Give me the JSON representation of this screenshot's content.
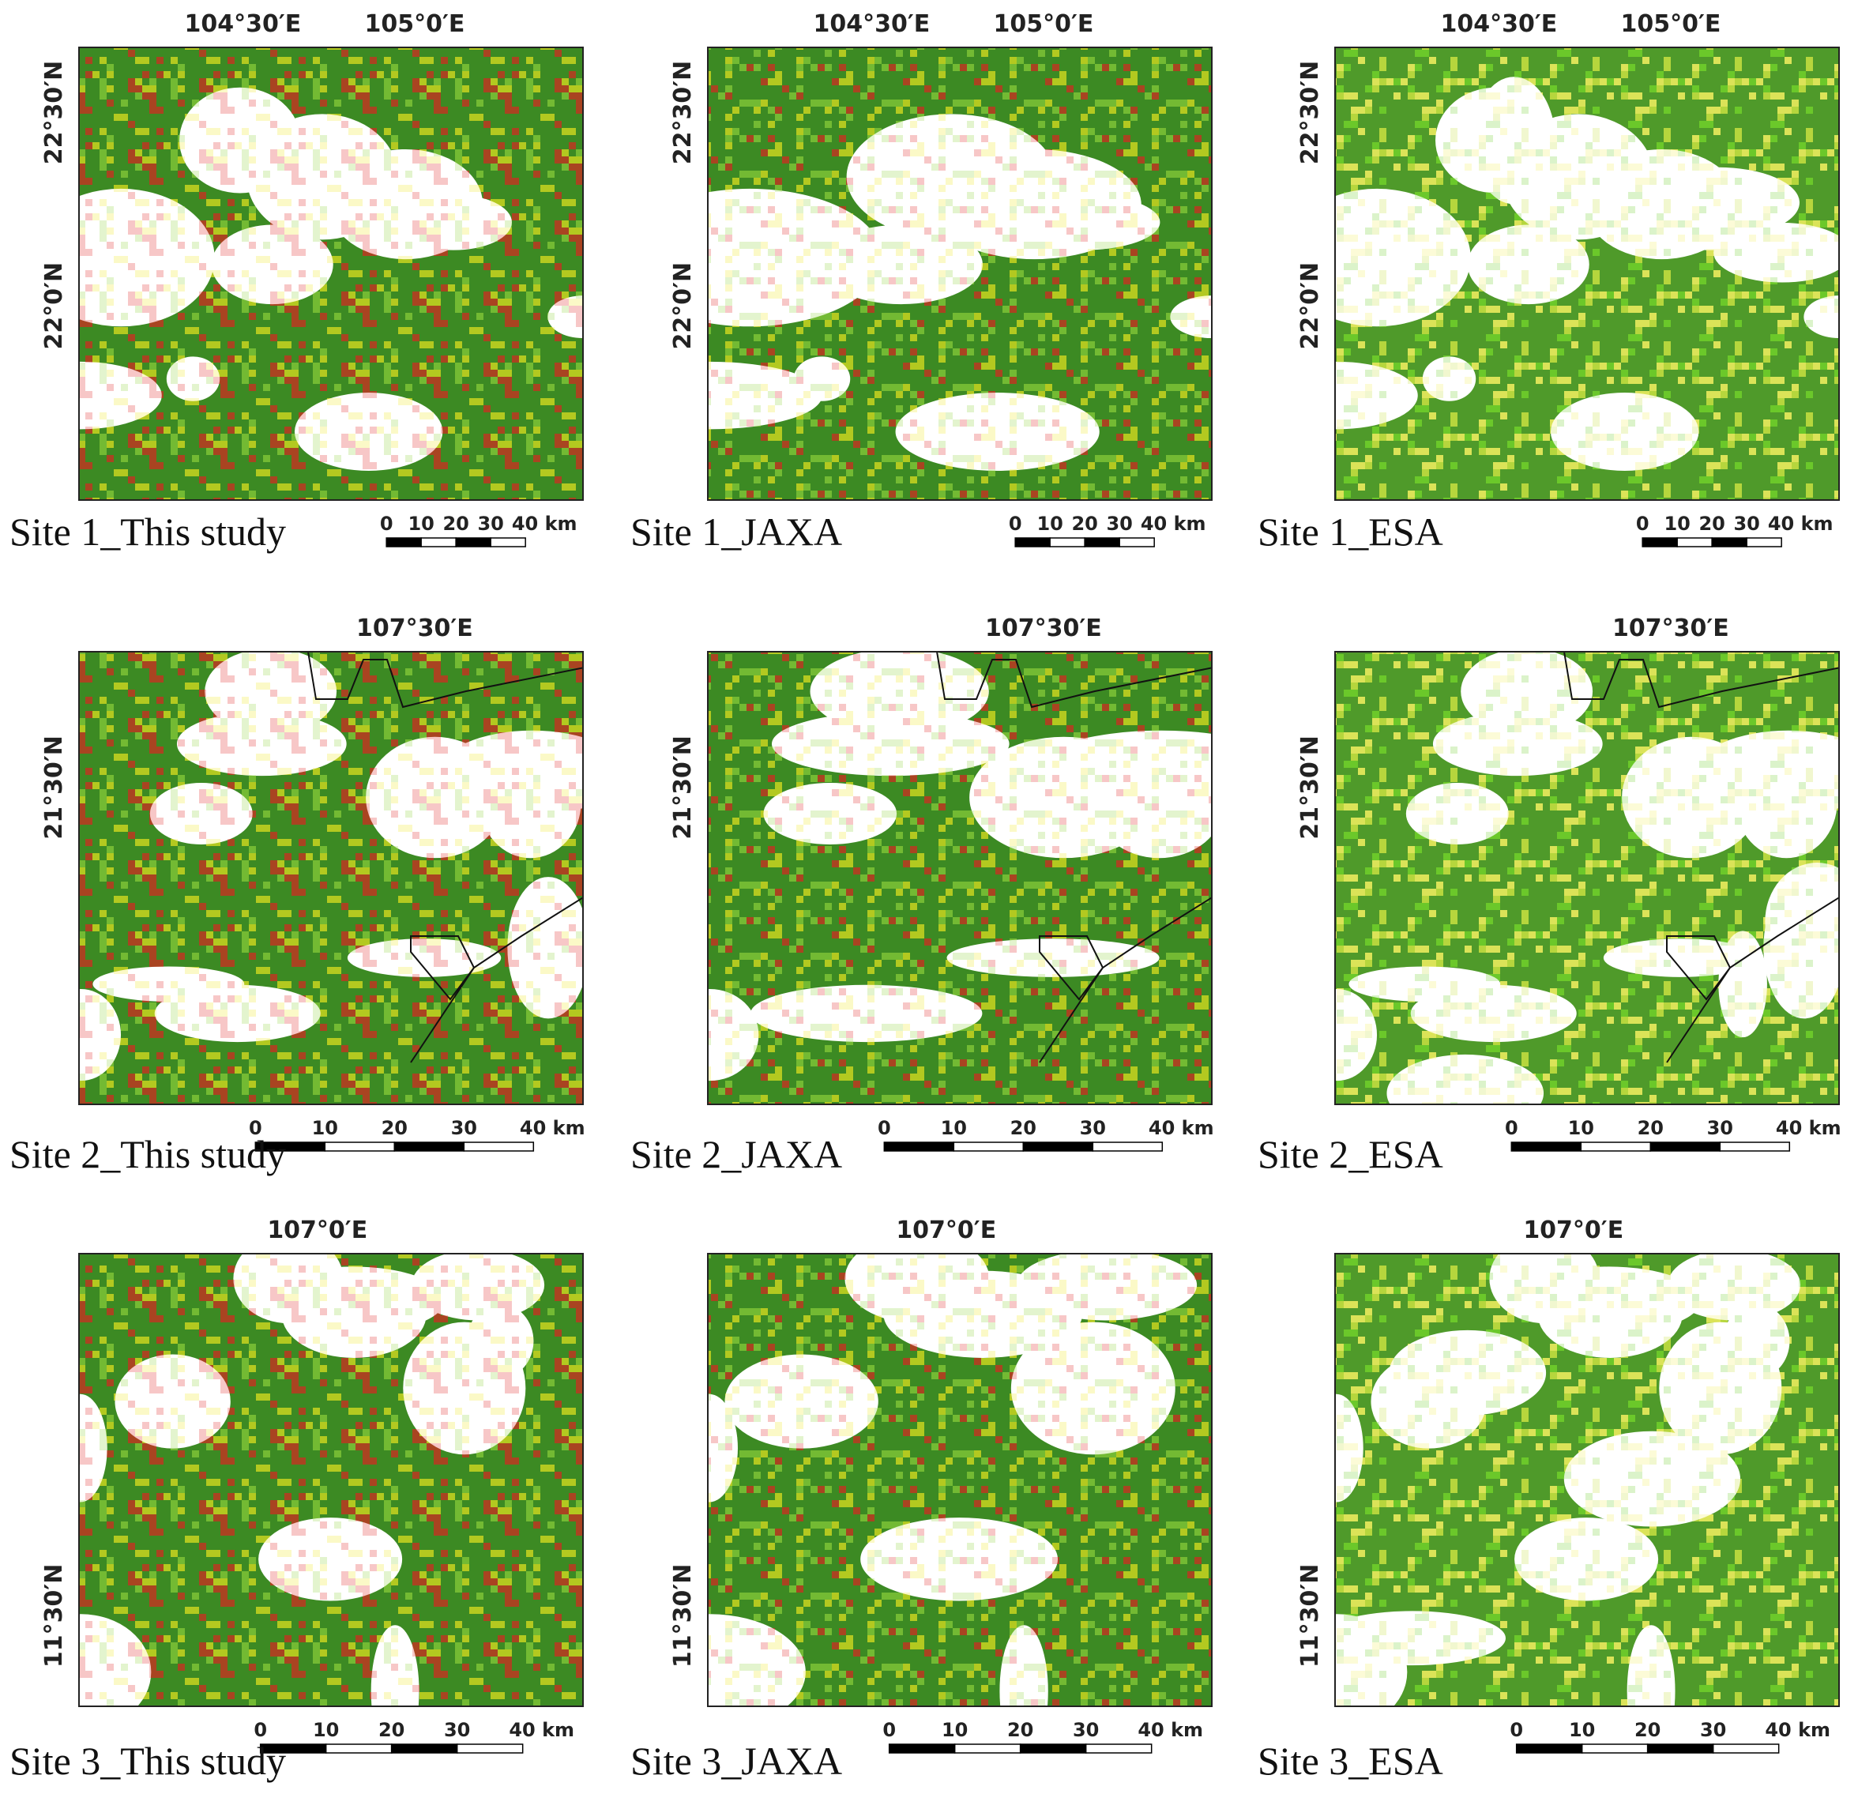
{
  "panels": [
    {
      "caption": "Site 1_This study",
      "lon_labels": [
        "104°30′E",
        "105°0′E"
      ],
      "lat_labels": [
        "22°30′N",
        "22°0′N"
      ],
      "scale_labels": [
        "0",
        "10",
        "20",
        "30",
        "40 km"
      ]
    },
    {
      "caption": "Site 1_JAXA",
      "lon_labels": [
        "104°30′E",
        "105°0′E"
      ],
      "lat_labels": [
        "22°30′N",
        "22°0′N"
      ],
      "scale_labels": [
        "0",
        "10",
        "20",
        "30",
        "40 km"
      ]
    },
    {
      "caption": "Site 1_ESA",
      "lon_labels": [
        "104°30′E",
        "105°0′E"
      ],
      "lat_labels": [
        "22°30′N",
        "22°0′N"
      ],
      "scale_labels": [
        "0",
        "10",
        "20",
        "30",
        "40 km"
      ]
    },
    {
      "caption": "Site 2_This study",
      "lon_labels": [
        "107°30′E"
      ],
      "lat_labels": [
        "21°30′N"
      ],
      "scale_labels": [
        "0",
        "10",
        "20",
        "30",
        "40 km"
      ]
    },
    {
      "caption": "Site 2_JAXA",
      "lon_labels": [
        "107°30′E"
      ],
      "lat_labels": [
        "21°30′N"
      ],
      "scale_labels": [
        "0",
        "10",
        "20",
        "30",
        "40 km"
      ]
    },
    {
      "caption": "Site 2_ESA",
      "lon_labels": [
        "107°30′E"
      ],
      "lat_labels": [
        "21°30′N"
      ],
      "scale_labels": [
        "0",
        "10",
        "20",
        "30",
        "40 km"
      ]
    },
    {
      "caption": "Site 3_This study",
      "lon_labels": [
        "107°0′E"
      ],
      "lat_labels": [
        "11°30′N"
      ],
      "scale_labels": [
        "0",
        "10",
        "20",
        "30",
        "40 km"
      ]
    },
    {
      "caption": "Site 3_JAXA",
      "lon_labels": [
        "107°0′E"
      ],
      "lat_labels": [
        "11°30′N"
      ],
      "scale_labels": [
        "0",
        "10",
        "20",
        "30",
        "40 km"
      ]
    },
    {
      "caption": "Site 3_ESA",
      "lon_labels": [
        "107°0′E"
      ],
      "lat_labels": [
        "11°30′N"
      ],
      "scale_labels": [
        "0",
        "10",
        "20",
        "30",
        "40 km"
      ]
    }
  ]
}
